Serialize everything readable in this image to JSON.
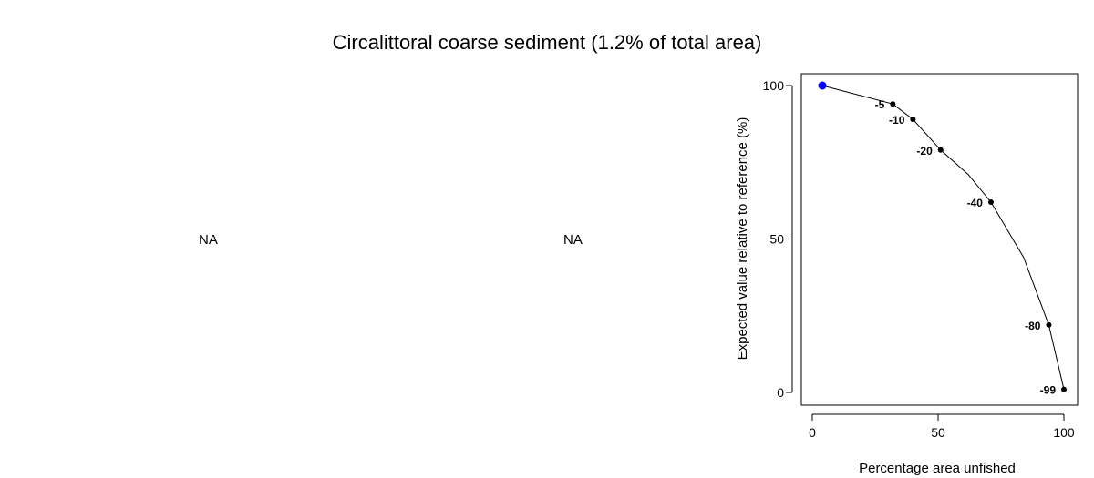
{
  "title": "Circalittoral coarse sediment (1.2% of total area)",
  "panels": [
    {
      "text": "NA"
    },
    {
      "text": "NA"
    }
  ],
  "chart_data": {
    "type": "line",
    "title": "",
    "xlabel": "Percentage area unfished",
    "ylabel": "Expected value relative to reference (%)",
    "xlim": [
      0,
      100
    ],
    "ylim": [
      0,
      100
    ],
    "xticks": [
      0,
      50,
      100
    ],
    "yticks": [
      0,
      50,
      100
    ],
    "grid": false,
    "series": [
      {
        "x": [
          4,
          32,
          40,
          51,
          62,
          71,
          84,
          94,
          100
        ],
        "y": [
          100,
          94,
          89,
          79,
          71,
          62,
          44,
          22,
          1
        ],
        "color": "#000000"
      }
    ],
    "points": [
      {
        "x": 4,
        "y": 100,
        "label": "",
        "color": "#0000ff",
        "highlight": true
      },
      {
        "x": 32,
        "y": 94,
        "label": "-5",
        "color": "#000000"
      },
      {
        "x": 40,
        "y": 89,
        "label": "-10",
        "color": "#000000"
      },
      {
        "x": 51,
        "y": 79,
        "label": "-20",
        "color": "#000000"
      },
      {
        "x": 71,
        "y": 62,
        "label": "-40",
        "color": "#000000"
      },
      {
        "x": 94,
        "y": 22,
        "label": "-80",
        "color": "#000000"
      },
      {
        "x": 100,
        "y": 1,
        "label": "-99",
        "color": "#000000"
      }
    ]
  }
}
